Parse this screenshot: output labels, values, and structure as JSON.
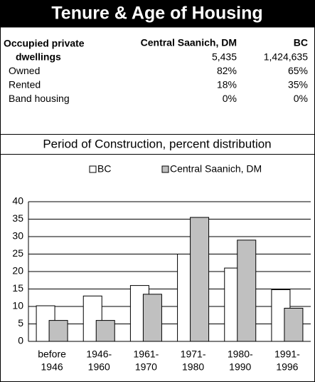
{
  "header": {
    "title": "Tenure & Age of Housing"
  },
  "table": {
    "columns": [
      "Central Saanich, DM",
      "BC"
    ],
    "rows": [
      {
        "label": [
          "Occupied private",
          "dwellings"
        ],
        "values": [
          "5,435",
          "1,424,635"
        ]
      },
      {
        "label": [
          "Owned"
        ],
        "values": [
          "82%",
          "65%"
        ]
      },
      {
        "label": [
          "Rented"
        ],
        "values": [
          "18%",
          "35%"
        ]
      },
      {
        "label": [
          "Band housing"
        ],
        "values": [
          "0%",
          "0%"
        ]
      }
    ]
  },
  "chart_data": {
    "type": "bar",
    "title": "Period of Construction, percent distribution",
    "categories": [
      [
        "before",
        "1946"
      ],
      [
        "1946-",
        "1960"
      ],
      [
        "1961-",
        "1970"
      ],
      [
        "1971-",
        "1980"
      ],
      [
        "1980-",
        "1990"
      ],
      [
        "1991-",
        "1996"
      ]
    ],
    "series": [
      {
        "name": "BC",
        "color": "#ffffff",
        "values": [
          10.2,
          13,
          16,
          25,
          21,
          14.8
        ]
      },
      {
        "name": "Central Saanich, DM",
        "color": "#c0c0c0",
        "values": [
          6,
          6,
          13.5,
          35.5,
          29,
          9.5
        ]
      }
    ],
    "ylim": [
      0,
      40
    ],
    "yticks": [
      0,
      5,
      10,
      15,
      20,
      25,
      30,
      35,
      40
    ],
    "grid": true,
    "legend": "top"
  }
}
